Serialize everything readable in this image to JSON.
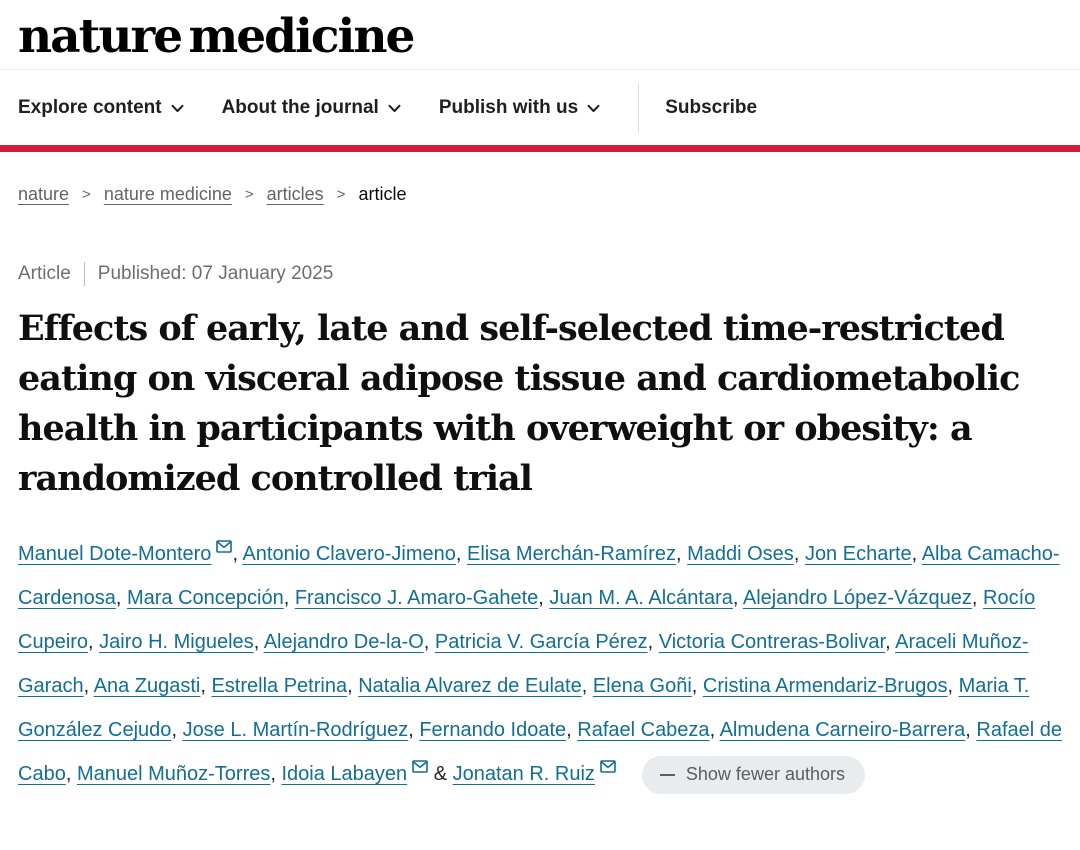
{
  "brand": {
    "logo_text": "nature medicine",
    "accent_red": "#d21c3c",
    "link_color": "#116e96"
  },
  "nav": {
    "items": [
      {
        "label": "Explore content",
        "dropdown": true
      },
      {
        "label": "About the journal",
        "dropdown": true
      },
      {
        "label": "Publish with us",
        "dropdown": true
      }
    ],
    "subscribe_label": "Subscribe"
  },
  "breadcrumb": {
    "separator": ">",
    "items": [
      {
        "label": "nature",
        "link": true
      },
      {
        "label": "nature medicine",
        "link": true
      },
      {
        "label": "articles",
        "link": true
      },
      {
        "label": "article",
        "link": false
      }
    ]
  },
  "article": {
    "type_label": "Article",
    "published_text": "Published: 07 January 2025",
    "title": "Effects of early, late and self-selected time-restricted eating on visceral adipose tissue and cardiometabolic health in participants with overweight or obesity: a randomized controlled trial",
    "last_author_conjunction": "&",
    "show_fewer_label": "Show fewer authors",
    "authors": [
      {
        "name": "Manuel Dote-Montero",
        "email": true
      },
      {
        "name": "Antonio Clavero-Jimeno",
        "email": false
      },
      {
        "name": "Elisa Merchán-Ramírez",
        "email": false
      },
      {
        "name": "Maddi Oses",
        "email": false
      },
      {
        "name": "Jon Echarte",
        "email": false
      },
      {
        "name": "Alba Camacho-Cardenosa",
        "email": false
      },
      {
        "name": "Mara Concepción",
        "email": false
      },
      {
        "name": "Francisco J. Amaro-Gahete",
        "email": false
      },
      {
        "name": "Juan M. A. Alcántara",
        "email": false
      },
      {
        "name": "Alejandro López-Vázquez",
        "email": false
      },
      {
        "name": "Rocío Cupeiro",
        "email": false
      },
      {
        "name": "Jairo H. Migueles",
        "email": false
      },
      {
        "name": "Alejandro De-la-O",
        "email": false
      },
      {
        "name": "Patricia V. García Pérez",
        "email": false
      },
      {
        "name": "Victoria Contreras-Bolivar",
        "email": false
      },
      {
        "name": "Araceli Muñoz-Garach",
        "email": false
      },
      {
        "name": "Ana Zugasti",
        "email": false
      },
      {
        "name": "Estrella Petrina",
        "email": false
      },
      {
        "name": "Natalia Alvarez de Eulate",
        "email": false
      },
      {
        "name": "Elena Goñi",
        "email": false
      },
      {
        "name": "Cristina Armendariz-Brugos",
        "email": false
      },
      {
        "name": "Maria T. González Cejudo",
        "email": false
      },
      {
        "name": "Jose L. Martín-Rodríguez",
        "email": false
      },
      {
        "name": "Fernando Idoate",
        "email": false
      },
      {
        "name": "Rafael Cabeza",
        "email": false
      },
      {
        "name": "Almudena Carneiro-Barrera",
        "email": false
      },
      {
        "name": "Rafael de Cabo",
        "email": false
      },
      {
        "name": "Manuel Muñoz-Torres",
        "email": false
      },
      {
        "name": "Idoia Labayen",
        "email": true
      },
      {
        "name": "Jonatan R. Ruiz",
        "email": true
      }
    ]
  }
}
